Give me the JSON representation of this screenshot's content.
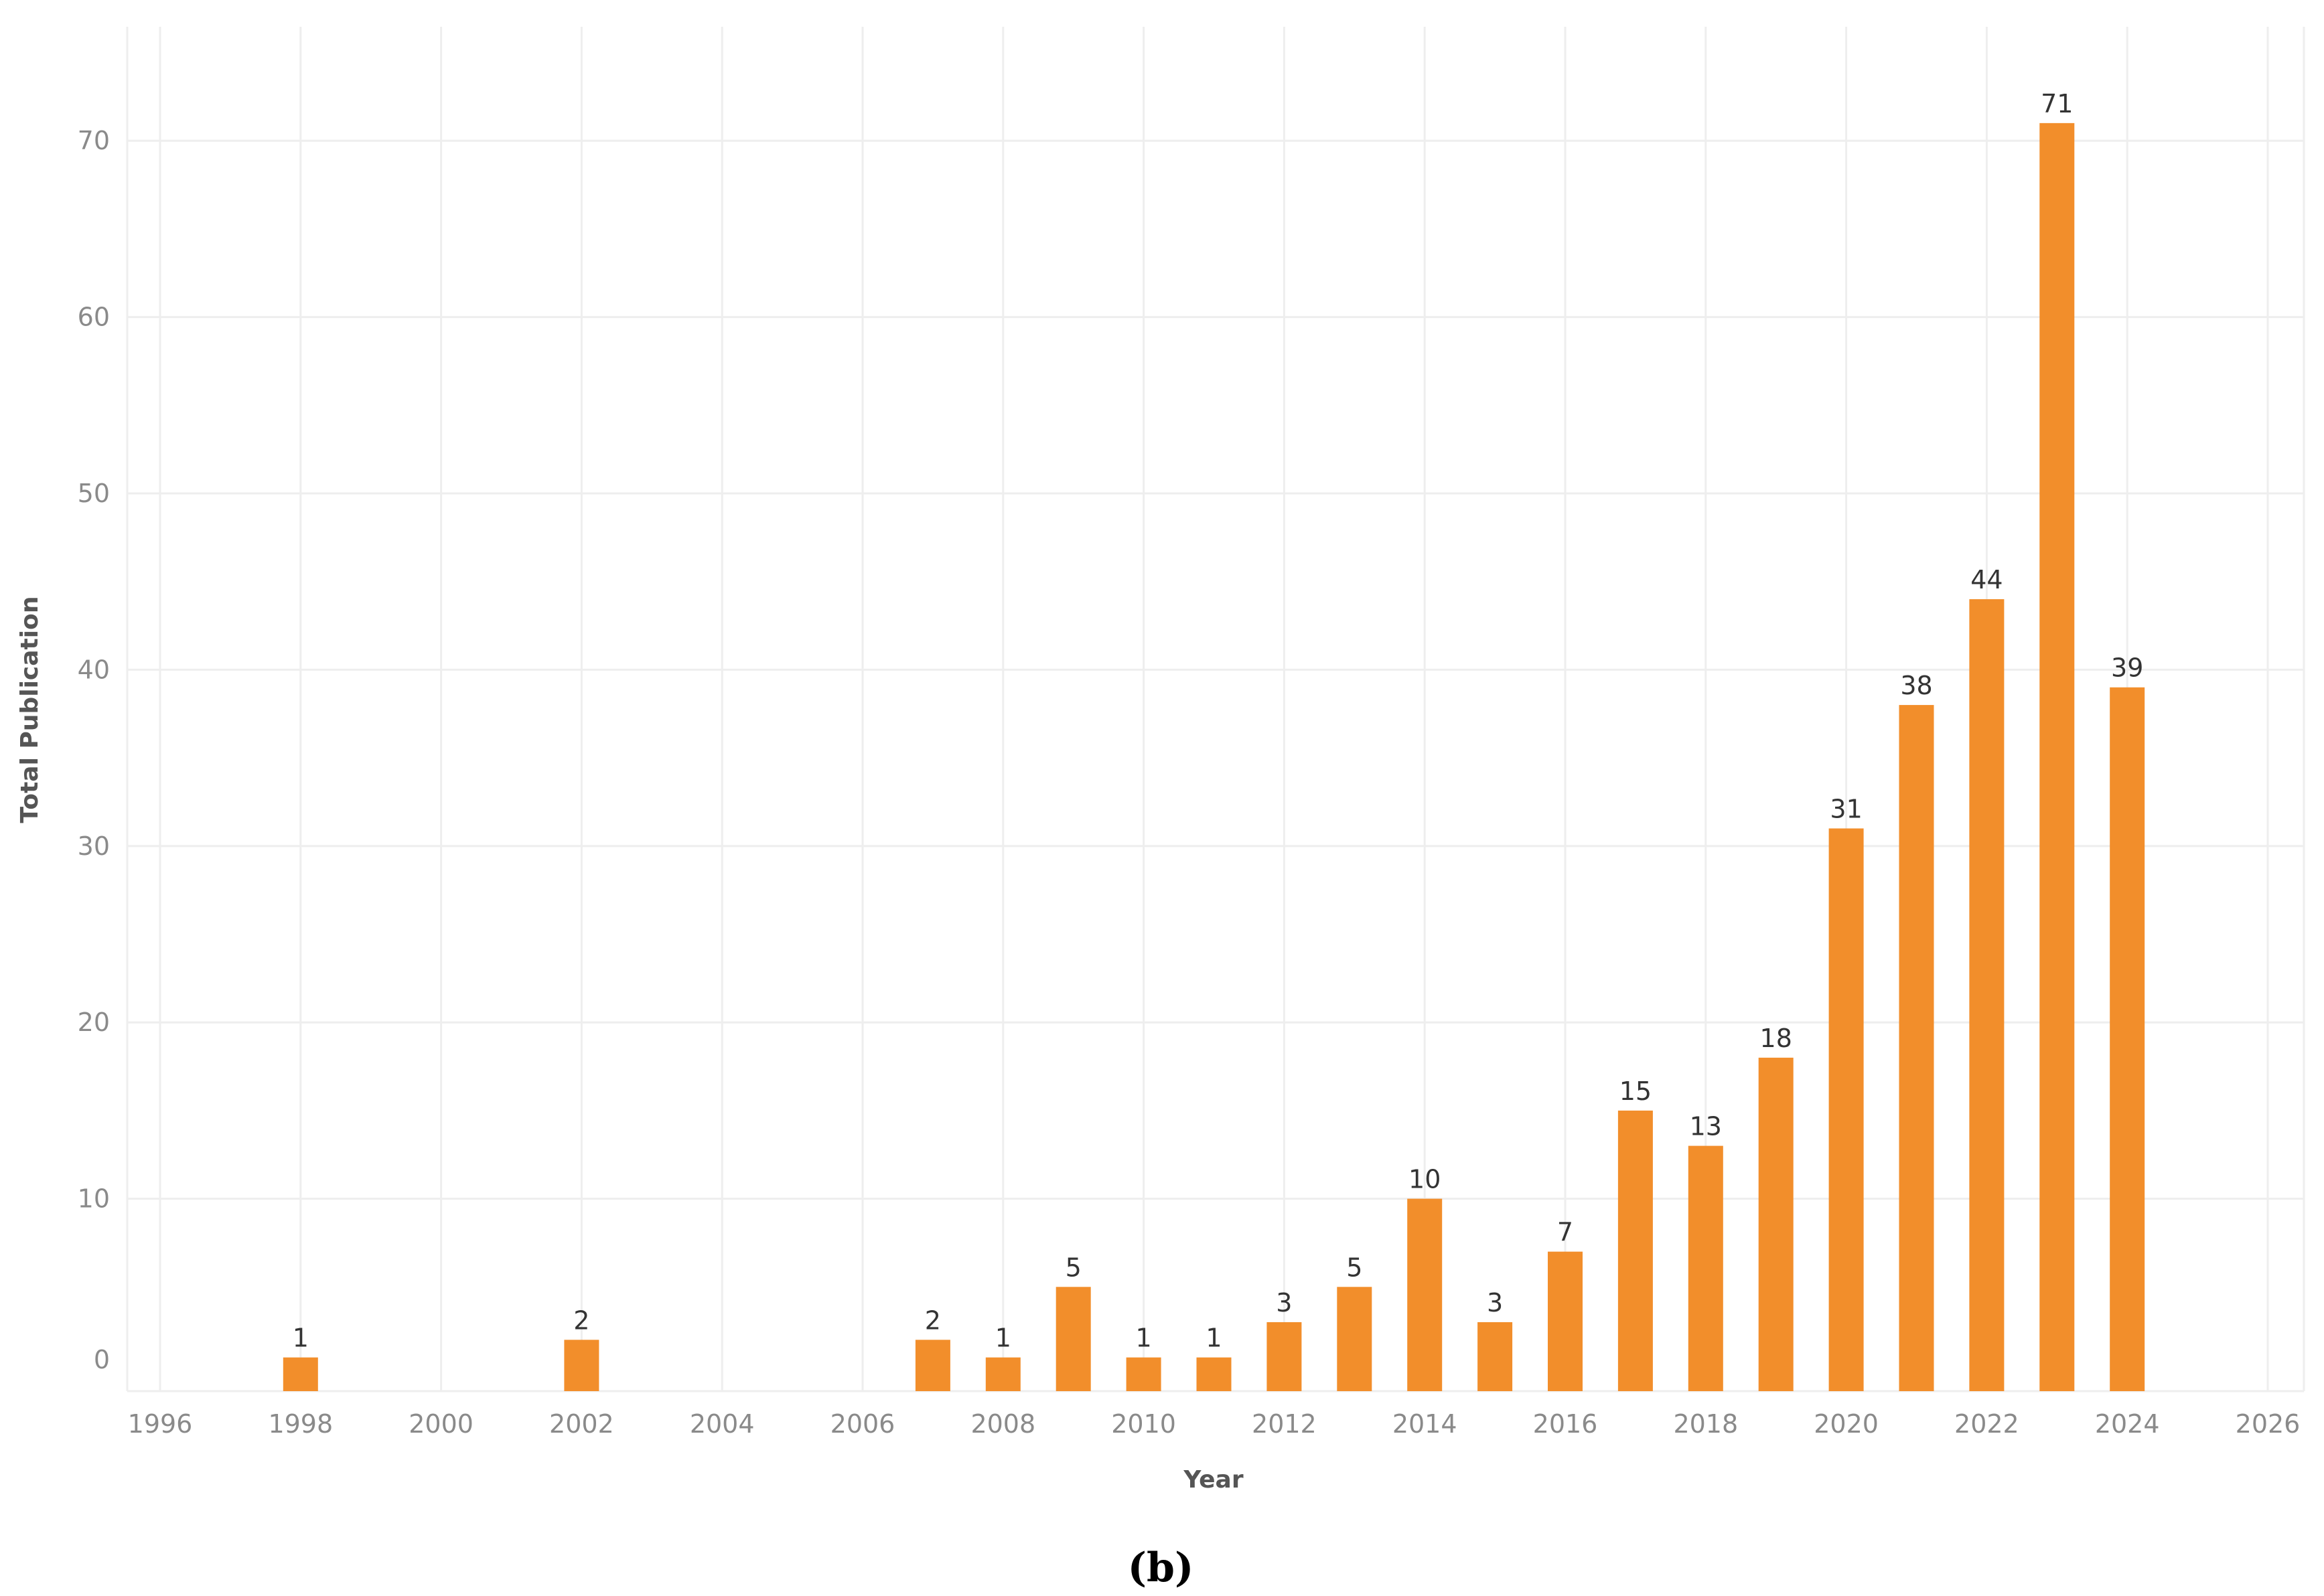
{
  "chart_data": {
    "type": "bar",
    "xlabel": "Year",
    "ylabel": "Total Publication",
    "xlim": [
      1996,
      2026
    ],
    "ylim": [
      0,
      75
    ],
    "x_ticks": [
      "1996",
      "1998",
      "2000",
      "2002",
      "2004",
      "2006",
      "2008",
      "2010",
      "2012",
      "2014",
      "2016",
      "2018",
      "2020",
      "2022",
      "2024",
      "2026"
    ],
    "y_ticks": [
      "0",
      "10",
      "20",
      "30",
      "40",
      "50",
      "60",
      "70"
    ],
    "grid": true,
    "bar_color": "#F28E2B",
    "x": [
      1998,
      2002,
      2007,
      2008,
      2009,
      2010,
      2011,
      2012,
      2013,
      2014,
      2015,
      2016,
      2017,
      2018,
      2019,
      2020,
      2021,
      2022,
      2023,
      2024
    ],
    "values": [
      1,
      2,
      2,
      1,
      5,
      1,
      1,
      3,
      5,
      10,
      3,
      7,
      15,
      13,
      18,
      31,
      38,
      44,
      71,
      39
    ],
    "labels": [
      "1",
      "2",
      "2",
      "1",
      "5",
      "1",
      "1",
      "3",
      "5",
      "10",
      "3",
      "7",
      "15",
      "13",
      "18",
      "31",
      "38",
      "44",
      "71",
      "39"
    ]
  },
  "caption": "(b)"
}
